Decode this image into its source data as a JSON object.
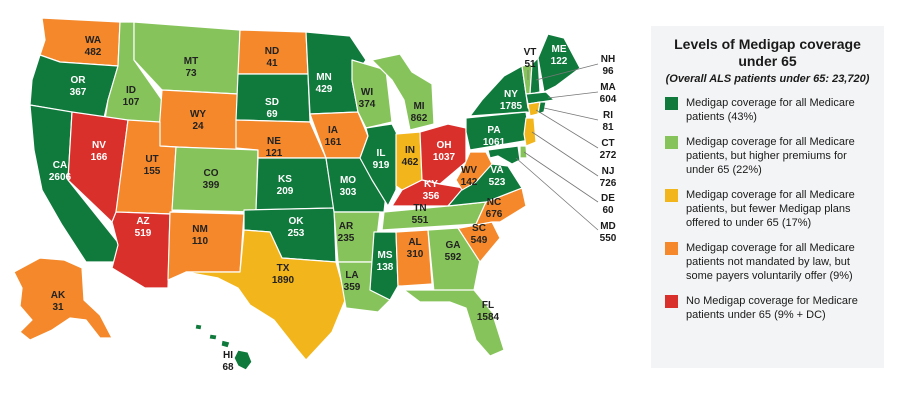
{
  "legend": {
    "title": "Levels of Medigap coverage under 65",
    "subtitle": "(Overall ALS patients under 65: 23,720)",
    "items": [
      {
        "label": "Medigap coverage for all Medicare patients (43%)",
        "color": "#0f7a3c"
      },
      {
        "label": "Medigap coverage for all Medicare patients, but higher premiums for under 65 (22%)",
        "color": "#86c45b"
      },
      {
        "label": "Medigap coverage for all Medicare patients, but fewer Medigap plans offered to under 65 (17%)",
        "color": "#f2b51b"
      },
      {
        "label": "Medigap coverage for all Medicare patients not mandated by law, but some payers voluntarily offer (9%)",
        "color": "#f4882a"
      },
      {
        "label": "No Medigap coverage for Medicare patients under 65 (9% + DC)",
        "color": "#d9302c"
      }
    ]
  },
  "states": {
    "WA": {
      "name": "WA",
      "value": "482"
    },
    "OR": {
      "name": "OR",
      "value": "367"
    },
    "CA": {
      "name": "CA",
      "value": "2606"
    },
    "ID": {
      "name": "ID",
      "value": "107"
    },
    "NV": {
      "name": "NV",
      "value": "166"
    },
    "MT": {
      "name": "MT",
      "value": "73"
    },
    "WY": {
      "name": "WY",
      "value": "24"
    },
    "UT": {
      "name": "UT",
      "value": "155"
    },
    "AZ": {
      "name": "AZ",
      "value": "519"
    },
    "CO": {
      "name": "CO",
      "value": "399"
    },
    "NM": {
      "name": "NM",
      "value": "110"
    },
    "ND": {
      "name": "ND",
      "value": "41"
    },
    "SD": {
      "name": "SD",
      "value": "69"
    },
    "NE": {
      "name": "NE",
      "value": "121"
    },
    "KS": {
      "name": "KS",
      "value": "209"
    },
    "OK": {
      "name": "OK",
      "value": "253"
    },
    "TX": {
      "name": "TX",
      "value": "1890"
    },
    "MN": {
      "name": "MN",
      "value": "429"
    },
    "IA": {
      "name": "IA",
      "value": "161"
    },
    "MO": {
      "name": "MO",
      "value": "303"
    },
    "AR": {
      "name": "AR",
      "value": "235"
    },
    "LA": {
      "name": "LA",
      "value": "359"
    },
    "WI": {
      "name": "WI",
      "value": "374"
    },
    "IL": {
      "name": "IL",
      "value": "919"
    },
    "MI": {
      "name": "MI",
      "value": "862"
    },
    "IN": {
      "name": "IN",
      "value": "462"
    },
    "OH": {
      "name": "OH",
      "value": "1037"
    },
    "KY": {
      "name": "KY",
      "value": "356"
    },
    "TN": {
      "name": "TN",
      "value": "551"
    },
    "MS": {
      "name": "MS",
      "value": "138"
    },
    "AL": {
      "name": "AL",
      "value": "310"
    },
    "GA": {
      "name": "GA",
      "value": "592"
    },
    "FL": {
      "name": "FL",
      "value": "1584"
    },
    "SC": {
      "name": "SC",
      "value": "549"
    },
    "NC": {
      "name": "NC",
      "value": "676"
    },
    "VA": {
      "name": "VA",
      "value": "523"
    },
    "WV": {
      "name": "WV",
      "value": "142"
    },
    "PA": {
      "name": "PA",
      "value": "1061"
    },
    "NY": {
      "name": "NY",
      "value": "1785"
    },
    "VT": {
      "name": "VT",
      "value": "51"
    },
    "ME": {
      "name": "ME",
      "value": "122"
    },
    "NH": {
      "name": "NH",
      "value": "96"
    },
    "MA": {
      "name": "MA",
      "value": "604"
    },
    "RI": {
      "name": "RI",
      "value": "81"
    },
    "CT": {
      "name": "CT",
      "value": "272"
    },
    "NJ": {
      "name": "NJ",
      "value": "726"
    },
    "DE": {
      "name": "DE",
      "value": "60"
    },
    "MD": {
      "name": "MD",
      "value": "550"
    },
    "AK": {
      "name": "AK",
      "value": "31"
    },
    "HI": {
      "name": "HI",
      "value": "68"
    }
  }
}
